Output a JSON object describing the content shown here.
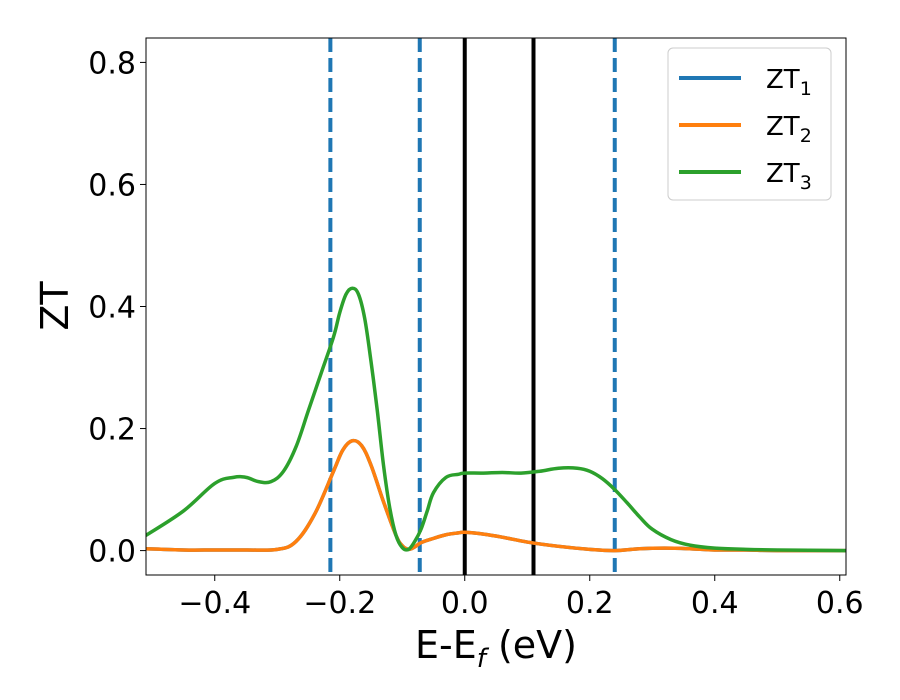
{
  "chart_data": {
    "type": "line",
    "xlabel": "E-E",
    "xlabel_sub": "f",
    "xlabel_unit": " (eV)",
    "ylabel": "ZT",
    "xlim": [
      -0.51,
      0.61
    ],
    "ylim": [
      -0.04,
      0.84
    ],
    "xticks": [
      -0.4,
      -0.2,
      0.0,
      0.2,
      0.4,
      0.6
    ],
    "xtick_labels": [
      "−0.4",
      "−0.2",
      "0.0",
      "0.2",
      "0.4",
      "0.6"
    ],
    "yticks": [
      0.0,
      0.2,
      0.4,
      0.6,
      0.8
    ],
    "ytick_labels": [
      "0.0",
      "0.2",
      "0.4",
      "0.6",
      "0.8"
    ],
    "grid": false,
    "legend_position": "top-right",
    "series": [
      {
        "name": "ZT",
        "name_sub": "1",
        "color": "#1f77b4",
        "x": [
          -0.51,
          -0.45,
          -0.4,
          -0.35,
          -0.3,
          -0.27,
          -0.24,
          -0.21,
          -0.195,
          -0.18,
          -0.165,
          -0.15,
          -0.13,
          -0.11,
          -0.1,
          -0.09,
          -0.08,
          -0.07,
          -0.05,
          -0.03,
          -0.01,
          0.0,
          0.03,
          0.06,
          0.1,
          0.15,
          0.2,
          0.24,
          0.28,
          0.32,
          0.36,
          0.4,
          0.45,
          0.5,
          0.61
        ],
        "y": [
          0.003,
          0.001,
          0.001,
          0.001,
          0.002,
          0.015,
          0.06,
          0.13,
          0.165,
          0.18,
          0.172,
          0.14,
          0.08,
          0.025,
          0.008,
          0.002,
          0.006,
          0.013,
          0.02,
          0.026,
          0.029,
          0.03,
          0.027,
          0.022,
          0.014,
          0.007,
          0.002,
          0.0,
          0.003,
          0.004,
          0.003,
          0.001,
          0.001,
          0.0,
          0.0
        ]
      },
      {
        "name": "ZT",
        "name_sub": "2",
        "color": "#ff7f0e",
        "x": [
          -0.51,
          -0.45,
          -0.4,
          -0.35,
          -0.3,
          -0.27,
          -0.24,
          -0.21,
          -0.195,
          -0.18,
          -0.165,
          -0.15,
          -0.13,
          -0.11,
          -0.1,
          -0.09,
          -0.08,
          -0.07,
          -0.05,
          -0.03,
          -0.01,
          0.0,
          0.03,
          0.06,
          0.1,
          0.15,
          0.2,
          0.24,
          0.28,
          0.32,
          0.36,
          0.4,
          0.45,
          0.5,
          0.61
        ],
        "y": [
          0.003,
          0.001,
          0.001,
          0.001,
          0.002,
          0.015,
          0.06,
          0.13,
          0.165,
          0.18,
          0.172,
          0.14,
          0.08,
          0.025,
          0.008,
          0.002,
          0.006,
          0.013,
          0.02,
          0.026,
          0.029,
          0.03,
          0.027,
          0.022,
          0.014,
          0.007,
          0.002,
          0.0,
          0.003,
          0.004,
          0.003,
          0.001,
          0.001,
          0.0,
          0.0
        ]
      },
      {
        "name": "ZT",
        "name_sub": "3",
        "color": "#2ca02c",
        "x": [
          -0.51,
          -0.45,
          -0.4,
          -0.37,
          -0.35,
          -0.33,
          -0.31,
          -0.29,
          -0.27,
          -0.25,
          -0.23,
          -0.21,
          -0.2,
          -0.19,
          -0.18,
          -0.17,
          -0.16,
          -0.15,
          -0.14,
          -0.13,
          -0.12,
          -0.11,
          -0.1,
          -0.09,
          -0.08,
          -0.07,
          -0.06,
          -0.05,
          -0.03,
          -0.01,
          0.0,
          0.03,
          0.06,
          0.09,
          0.12,
          0.15,
          0.18,
          0.2,
          0.22,
          0.24,
          0.26,
          0.28,
          0.3,
          0.33,
          0.36,
          0.4,
          0.45,
          0.5,
          0.61
        ],
        "y": [
          0.025,
          0.065,
          0.11,
          0.12,
          0.12,
          0.113,
          0.113,
          0.13,
          0.17,
          0.23,
          0.29,
          0.35,
          0.39,
          0.42,
          0.43,
          0.42,
          0.38,
          0.31,
          0.23,
          0.14,
          0.07,
          0.025,
          0.005,
          0.002,
          0.015,
          0.035,
          0.065,
          0.095,
          0.12,
          0.125,
          0.127,
          0.127,
          0.128,
          0.127,
          0.13,
          0.135,
          0.135,
          0.13,
          0.118,
          0.1,
          0.078,
          0.055,
          0.035,
          0.018,
          0.009,
          0.004,
          0.002,
          0.001,
          0.0
        ]
      }
    ],
    "vlines": [
      {
        "x": -0.215,
        "style": "dashed",
        "color": "#1f77b4"
      },
      {
        "x": -0.072,
        "style": "dashed",
        "color": "#1f77b4"
      },
      {
        "x": 0.0,
        "style": "solid",
        "color": "#000000"
      },
      {
        "x": 0.11,
        "style": "solid",
        "color": "#000000"
      },
      {
        "x": 0.24,
        "style": "dashed",
        "color": "#1f77b4"
      }
    ]
  }
}
